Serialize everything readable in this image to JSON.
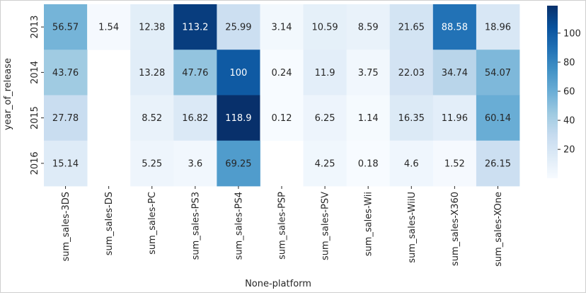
{
  "chart_data": {
    "type": "heatmap",
    "title": "",
    "xlabel": "None-platform",
    "ylabel": "year_of_release",
    "x_categories": [
      "sum_sales-3DS",
      "sum_sales-DS",
      "sum_sales-PC",
      "sum_sales-PS3",
      "sum_sales-PS4",
      "sum_sales-PSP",
      "sum_sales-PSV",
      "sum_sales-Wii",
      "sum_sales-WiiU",
      "sum_sales-X360",
      "sum_sales-XOne"
    ],
    "y_categories": [
      "2013",
      "2014",
      "2015",
      "2016"
    ],
    "values": [
      [
        56.57,
        1.54,
        12.38,
        113.2,
        25.99,
        3.14,
        10.59,
        8.59,
        21.65,
        88.58,
        18.96
      ],
      [
        43.76,
        null,
        13.28,
        47.76,
        100,
        0.24,
        11.9,
        3.75,
        22.03,
        34.74,
        54.07
      ],
      [
        27.78,
        null,
        8.52,
        16.82,
        118.9,
        0.12,
        6.25,
        1.14,
        16.35,
        11.96,
        60.14
      ],
      [
        15.14,
        null,
        5.25,
        3.6,
        69.25,
        null,
        4.25,
        0.18,
        4.6,
        1.52,
        26.15
      ]
    ],
    "colormap": "Blues",
    "colorbar": {
      "min": 0.12,
      "max": 118.9,
      "ticks": [
        20,
        40,
        60,
        80,
        100
      ],
      "placement": "right"
    },
    "colors": {
      "low": "#f7fbff",
      "high": "#08306b",
      "text_dark": "#262626",
      "text_light": "#ffffff"
    }
  }
}
